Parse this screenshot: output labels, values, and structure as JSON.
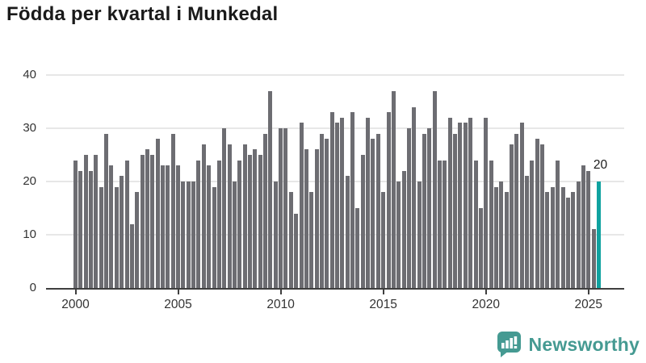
{
  "header": {
    "title": "Födda per kvartal i Munkedal"
  },
  "chart_data": {
    "type": "bar",
    "title": "Födda per kvartal i Munkedal",
    "x_start_year": 2000,
    "x_unit": "quarter",
    "x_tick_labels": [
      "2000",
      "2005",
      "2010",
      "2015",
      "2020",
      "2025"
    ],
    "y_tick_labels": [
      "0",
      "10",
      "20",
      "30",
      "40"
    ],
    "ylim": [
      0,
      40
    ],
    "grid": "horizontal",
    "legend": "none",
    "bar_color": "#6d6d72",
    "highlight_color": "#10a2a0",
    "values": [
      24,
      22,
      25,
      22,
      25,
      19,
      29,
      23,
      19,
      21,
      24,
      12,
      18,
      25,
      26,
      25,
      28,
      23,
      23,
      29,
      23,
      20,
      20,
      20,
      24,
      27,
      23,
      19,
      24,
      30,
      27,
      20,
      24,
      27,
      25,
      26,
      25,
      29,
      37,
      20,
      30,
      30,
      18,
      14,
      31,
      26,
      18,
      26,
      29,
      28,
      33,
      31,
      32,
      21,
      33,
      15,
      25,
      32,
      28,
      29,
      18,
      33,
      37,
      20,
      22,
      30,
      34,
      20,
      29,
      30,
      37,
      24,
      24,
      32,
      29,
      31,
      31,
      32,
      24,
      15,
      32,
      24,
      19,
      20,
      18,
      27,
      29,
      31,
      21,
      24,
      28,
      27,
      18,
      19,
      24,
      19,
      17,
      18,
      20,
      23,
      22,
      11,
      20
    ],
    "highlight_index": 102,
    "annotation": {
      "text": "20",
      "target_index": 102
    }
  },
  "footer": {
    "brand": "Newsworthy",
    "brand_color": "#459a92"
  }
}
